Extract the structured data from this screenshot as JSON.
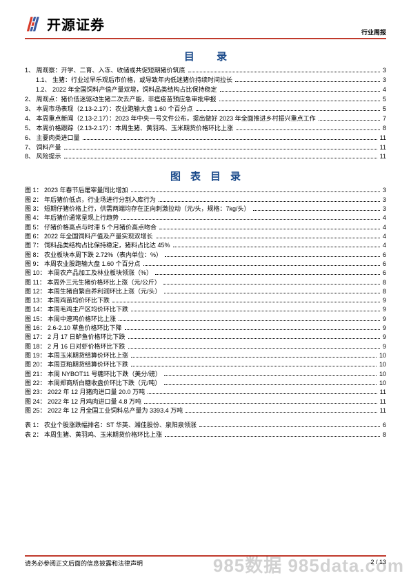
{
  "header": {
    "brand": "开源证券",
    "right_label": "行业周报"
  },
  "title_toc": "目 录",
  "title_figs": "图表目录",
  "toc": [
    {
      "lvl": 1,
      "text": "1、 周观察：开学、二育、入冻、收储或共促短期猪价筑底",
      "page": "3"
    },
    {
      "lvl": 2,
      "text": "1.1、 生猪：行业过早乐观后市价格，或导致年内低迷猪价持续时间拉长",
      "page": "3"
    },
    {
      "lvl": 2,
      "text": "1.2、 2022 年全国饲料产值产量双增，饲料品类结构占比保持稳定",
      "page": "4"
    },
    {
      "lvl": 1,
      "text": "2、 周观点：猪价低迷驱动生猪二次去产能，非瘟疫苗预应急审批申报",
      "page": "5"
    },
    {
      "lvl": 1,
      "text": "3、 本周市场表现（2.13-2.17）：农业跑输大盘 1.60 个百分点",
      "page": "5"
    },
    {
      "lvl": 1,
      "text": "4、 本周重点新闻（2.13-2.17）：2023 年中央一号文件公布，提出做好 2023 年全面推进乡村振兴重点工作",
      "page": "7"
    },
    {
      "lvl": 1,
      "text": "5、 本周价格跟踪（2.13-2.17）：本周生猪、黄羽鸡、玉米期货价格环比上涨",
      "page": "8"
    },
    {
      "lvl": 1,
      "text": "6、 主要肉类进口量",
      "page": "11"
    },
    {
      "lvl": 1,
      "text": "7、 饲料产量",
      "page": "11"
    },
    {
      "lvl": 1,
      "text": "8、 风险提示",
      "page": "11"
    }
  ],
  "figs": [
    {
      "text": "图 1： 2023 年春节后屠宰量同比增加",
      "page": "3"
    },
    {
      "text": "图 2： 年后猪价低点，行业场进行分割入库行为",
      "page": "3"
    },
    {
      "text": "图 3： 短期仔猪价格上行，供需两端均存在正向刺激拉动（元/头，规格：7kg/头）",
      "page": "3"
    },
    {
      "text": "图 4： 年后猪价通常呈现上行趋势",
      "page": "4"
    },
    {
      "text": "图 5： 仔猪价格高点与时滞 5 个月猪价高点吻合",
      "page": "4"
    },
    {
      "text": "图 6： 2022 年全国饲料产值及产量实现双增长",
      "page": "4"
    },
    {
      "text": "图 7： 饲料品类结构占比保持稳定，猪料占比达 45%",
      "page": "4"
    },
    {
      "text": "图 8： 农业板块本周下跌 2.72%（表内单位：%）",
      "page": "6"
    },
    {
      "text": "图 9： 本周农业股跑输大盘 1.60 个百分点",
      "page": "6"
    },
    {
      "text": "图 10： 本周农产品加工及林业板块领涨（%）",
      "page": "6"
    },
    {
      "text": "图 11： 本周外三元生猪价格环比上涨（元/公斤）",
      "page": "8"
    },
    {
      "text": "图 12： 本周生猪自繁自养利润环比上涨（元/头）",
      "page": "8"
    },
    {
      "text": "图 13： 本周鸡苗均价环比下跌",
      "page": "9"
    },
    {
      "text": "图 14： 本周毛鸡主产区均价环比下跌",
      "page": "9"
    },
    {
      "text": "图 15： 本周中速鸡价格环比上涨",
      "page": "9"
    },
    {
      "text": "图 16： 2.6-2.10 草鱼价格环比下降",
      "page": "9"
    },
    {
      "text": "图 17： 2 月 17 日鲈鱼价格环比下跌",
      "page": "9"
    },
    {
      "text": "图 18： 2 月 16 日对虾价格环比下跌",
      "page": "9"
    },
    {
      "text": "图 19： 本周玉米期货结算价环比上涨",
      "page": "10"
    },
    {
      "text": "图 20： 本周豆粕期货结算价环比下跌",
      "page": "10"
    },
    {
      "text": "图 21： 本周 NYBOT11 号糖环比下跌（美分/磅）",
      "page": "10"
    },
    {
      "text": "图 22： 本周郑商所白糖收盘价环比下跌（元/吨）",
      "page": "10"
    },
    {
      "text": "图 23： 2022 年 12 月猪肉进口量 20.0 万吨",
      "page": "11"
    },
    {
      "text": "图 24： 2022 年 12 月鸡肉进口量 4.8 万吨",
      "page": "11"
    },
    {
      "text": "图 25： 2022 年 12 月全国工业饲料总产量为 3393.4 万吨",
      "page": "11"
    }
  ],
  "tables": [
    {
      "text": "表 1： 农业个股涨跌幅排名：ST 华英、湘佳股份、泉阳泉领涨",
      "page": "6"
    },
    {
      "text": "表 2： 本周生猪、黄羽鸡、玉米期货价格环比上涨",
      "page": "8"
    }
  ],
  "footer": {
    "left": "请务必参阅正文后面的信息披露和法律声明",
    "right": "2 / 13"
  },
  "watermark": "985数据 985data.com",
  "colors": {
    "accent_red": "#c0392b",
    "title_blue": "#1a4a8a",
    "logo_red": "#d73b2a",
    "logo_blue": "#3a5aa0",
    "watermark": "rgba(0,0,0,0.18)"
  }
}
